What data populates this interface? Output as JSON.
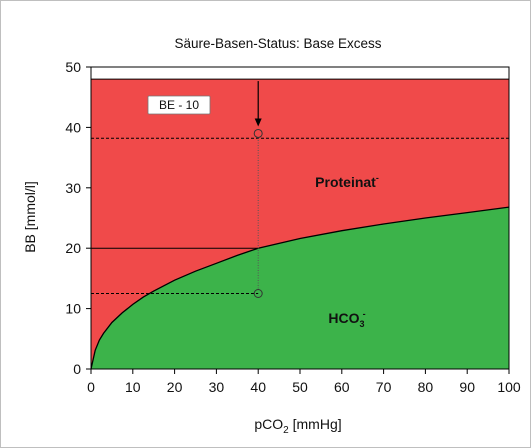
{
  "chart_data": {
    "type": "area",
    "title": "Säure-Basen-Status: Base Excess",
    "xlabel": "pCO",
    "xlabel_sub": "2",
    "xlabel_unit": " [mmHg]",
    "ylabel": "BB  [mmol/l]",
    "xlim": [
      0,
      100
    ],
    "ylim": [
      0,
      50
    ],
    "x_ticks": [
      "0",
      "10",
      "20",
      "30",
      "40",
      "50",
      "60",
      "70",
      "80",
      "90",
      "100"
    ],
    "y_ticks": [
      "0",
      "10",
      "20",
      "30",
      "40",
      "50"
    ],
    "total_buffer_base": 48,
    "series": [
      {
        "name": "HCO3",
        "x": [
          0,
          1,
          2,
          3,
          5,
          7.5,
          10,
          12.5,
          15,
          20,
          25,
          30,
          35,
          40,
          50,
          60,
          70,
          80,
          90,
          100
        ],
        "values": [
          0,
          3.1,
          4.8,
          5.9,
          7.7,
          9.3,
          10.7,
          11.9,
          12.9,
          14.7,
          16.2,
          17.5,
          18.8,
          20,
          21.6,
          22.9,
          24.0,
          25.0,
          25.9,
          26.8
        ]
      }
    ],
    "regions": {
      "upper_label": "Proteinat",
      "upper_sup": "-",
      "lower_label": "HCO",
      "lower_sub": "3",
      "lower_sup": "-"
    },
    "annotations": {
      "be_label": "BE - 10",
      "marker_x": 40,
      "upper_circle_y": 39,
      "lower_circle_y": 12.5,
      "upper_dashed_y": 38.2,
      "lower_dashed_y": 12.5,
      "reference_y": 20
    },
    "colors": {
      "upper": "#f04a4a",
      "lower": "#3cb34a",
      "curve": "#000000"
    }
  }
}
